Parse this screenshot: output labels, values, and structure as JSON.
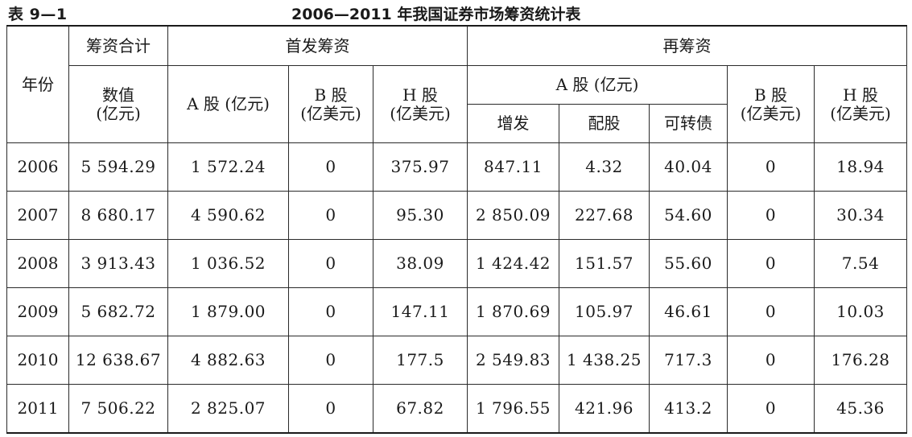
{
  "caption": {
    "label": "表 9—1",
    "title": "2006—2011 年我国证券市场筹资统计表"
  },
  "headers": {
    "year": "年份",
    "total_group": "筹资合计",
    "total_value_line1": "数值",
    "total_value_line2": "(亿元)",
    "ipo_group": "首发筹资",
    "ipo_a": "A 股 (亿元)",
    "ipo_b_line1": "B 股",
    "ipo_b_line2": "(亿美元)",
    "ipo_h_line1": "H 股",
    "ipo_h_line2": "(亿美元)",
    "refi_group": "再筹资",
    "refi_a": "A 股 (亿元)",
    "refi_a_issue": "增发",
    "refi_a_rights": "配股",
    "refi_a_convertible": "可转债",
    "refi_b_line1": "B 股",
    "refi_b_line2": "(亿美元)",
    "refi_h_line1": "H 股",
    "refi_h_line2": "(亿美元)"
  },
  "rows": [
    {
      "year": "2006",
      "total": "5 594.29",
      "ipo_a": "1 572.24",
      "ipo_b": "0",
      "ipo_h": "375.97",
      "issue": "847.11",
      "rights": "4.32",
      "convertible": "40.04",
      "refi_b": "0",
      "refi_h": "18.94"
    },
    {
      "year": "2007",
      "total": "8 680.17",
      "ipo_a": "4 590.62",
      "ipo_b": "0",
      "ipo_h": "95.30",
      "issue": "2 850.09",
      "rights": "227.68",
      "convertible": "54.60",
      "refi_b": "0",
      "refi_h": "30.34"
    },
    {
      "year": "2008",
      "total": "3 913.43",
      "ipo_a": "1 036.52",
      "ipo_b": "0",
      "ipo_h": "38.09",
      "issue": "1 424.42",
      "rights": "151.57",
      "convertible": "55.60",
      "refi_b": "0",
      "refi_h": "7.54"
    },
    {
      "year": "2009",
      "total": "5 682.72",
      "ipo_a": "1 879.00",
      "ipo_b": "0",
      "ipo_h": "147.11",
      "issue": "1 870.69",
      "rights": "105.97",
      "convertible": "46.61",
      "refi_b": "0",
      "refi_h": "10.03"
    },
    {
      "year": "2010",
      "total": "12 638.67",
      "ipo_a": "4 882.63",
      "ipo_b": "0",
      "ipo_h": "177.5",
      "issue": "2 549.83",
      "rights": "1 438.25",
      "convertible": "717.3",
      "refi_b": "0",
      "refi_h": "176.28"
    },
    {
      "year": "2011",
      "total": "7 506.22",
      "ipo_a": "2 825.07",
      "ipo_b": "0",
      "ipo_h": "67.82",
      "issue": "1 796.55",
      "rights": "421.96",
      "convertible": "413.2",
      "refi_b": "0",
      "refi_h": "45.36"
    }
  ]
}
